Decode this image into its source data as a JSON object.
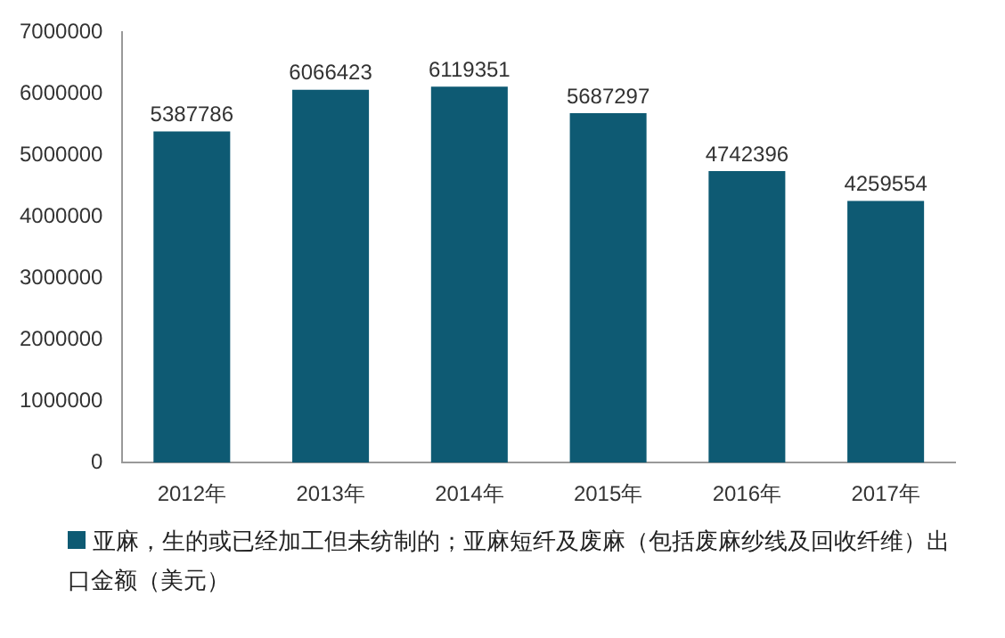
{
  "chart_data": {
    "type": "bar",
    "categories": [
      "2012年",
      "2013年",
      "2014年",
      "2015年",
      "2016年",
      "2017年"
    ],
    "series": [
      {
        "name": "亚麻，生的或已经加工但未纺制的；亚麻短纤及废麻（包括废麻纱线及回收纤维）出口金额（美元）",
        "color": "#0e5a73",
        "values": [
          5387786,
          6066423,
          6119351,
          5687297,
          4742396,
          4259554
        ]
      }
    ],
    "ylim": [
      0,
      7000000
    ],
    "yticks": [
      0,
      1000000,
      2000000,
      3000000,
      4000000,
      5000000,
      6000000,
      7000000
    ],
    "grid": false,
    "legend": "bottom",
    "data_labels": true
  }
}
